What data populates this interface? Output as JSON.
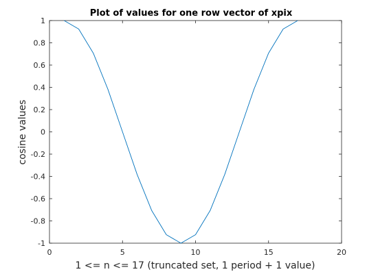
{
  "chart_data": {
    "type": "line",
    "title": "Plot of values for one row vector of xpix",
    "xlabel": "1 <= n <= 17 (truncated set, 1 period + 1 value)",
    "ylabel": "cosine values",
    "xlim": [
      0,
      20
    ],
    "ylim": [
      -1,
      1
    ],
    "xticks": [
      0,
      5,
      10,
      15,
      20
    ],
    "xtick_labels": [
      "0",
      "5",
      "10",
      "15",
      "20"
    ],
    "yticks": [
      -1,
      -0.8,
      -0.6,
      -0.4,
      -0.2,
      0,
      0.2,
      0.4,
      0.6,
      0.8,
      1
    ],
    "ytick_labels": [
      "-1",
      "-0.8",
      "-0.6",
      "-0.4",
      "-0.2",
      "0",
      "0.2",
      "0.4",
      "0.6",
      "0.8",
      "1"
    ],
    "grid": false,
    "box": true,
    "series": [
      {
        "color": "#0072bd",
        "x": [
          1,
          2,
          3,
          4,
          5,
          6,
          7,
          8,
          9,
          10,
          11,
          12,
          13,
          14,
          15,
          16,
          17
        ],
        "y": [
          1,
          0.9239,
          0.7071,
          0.3827,
          0,
          -0.3827,
          -0.7071,
          -0.9239,
          -1,
          -0.9239,
          -0.7071,
          -0.3827,
          0,
          0.3827,
          0.7071,
          0.9239,
          1
        ]
      }
    ]
  }
}
